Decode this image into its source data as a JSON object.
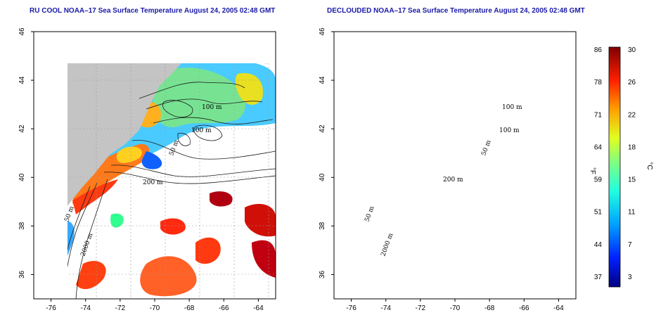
{
  "chart_data": [
    {
      "type": "heatmap",
      "title": "RU COOL NOAA–17 Sea Surface Temperature August 24, 2005 02:48 GMT",
      "x_ticks": [
        "-76",
        "-74",
        "-72",
        "-70",
        "-68",
        "-66",
        "-64"
      ],
      "y_ticks": [
        "36",
        "38",
        "40",
        "42",
        "44",
        "46"
      ],
      "xlim": [
        -77,
        -63
      ],
      "ylim": [
        35,
        46
      ],
      "grid": true,
      "contour_labels": [
        "100 m",
        "100 m",
        "50 m",
        "200 m",
        "50 m",
        "2000 m"
      ]
    },
    {
      "type": "heatmap",
      "title": "DECLOUDED NOAA–17 Sea Surface Temperature August 24, 2005 02:48 GMT",
      "x_ticks": [
        "-76",
        "-74",
        "-72",
        "-70",
        "-68",
        "-66",
        "-64"
      ],
      "y_ticks": [
        "36",
        "38",
        "40",
        "42",
        "44",
        "46"
      ],
      "xlim": [
        -77,
        -63
      ],
      "ylim": [
        35,
        46
      ],
      "grid": true,
      "contour_labels": [
        "100 m",
        "100 m",
        "50 m",
        "200 m",
        "50 m",
        "2000 m"
      ]
    }
  ],
  "colorbar": {
    "unit_left": "°F",
    "unit_right": "°C",
    "fahrenheit_ticks": [
      "86",
      "78",
      "71",
      "64",
      "59",
      "51",
      "44",
      "37"
    ],
    "celsius_ticks": [
      "30",
      "26",
      "22",
      "18",
      "15",
      "11",
      "7",
      "3"
    ],
    "colors": [
      "#000080",
      "#0020ff",
      "#00a0ff",
      "#20ffe0",
      "#80ff80",
      "#e0ff20",
      "#ffa000",
      "#ff2000",
      "#800000"
    ]
  },
  "colors": {
    "land": "#c4c4c4",
    "ocean_cloud": "#ffffff",
    "title": "#1a1aa8"
  }
}
